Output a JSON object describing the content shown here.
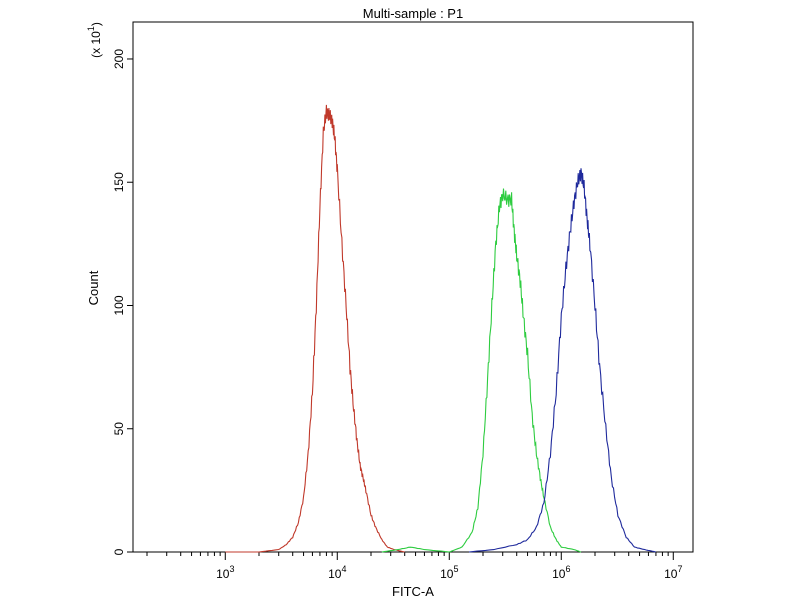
{
  "chart_data": {
    "type": "line",
    "title": "Multi-sample : P1",
    "xlabel": "FITC-A",
    "ylabel": "Count",
    "y_multiplier": "(x 10",
    "y_multiplier_exp": "1",
    "y_multiplier_close": ")",
    "x_scale": "log",
    "xlim": [
      150,
      15000000
    ],
    "ylim": [
      0,
      215
    ],
    "y_ticks": [
      {
        "value": 0,
        "label": "0"
      },
      {
        "value": 50,
        "label": "50"
      },
      {
        "value": 100,
        "label": "100"
      },
      {
        "value": 150,
        "label": "150"
      },
      {
        "value": 200,
        "label": "200"
      }
    ],
    "x_ticks": [
      {
        "value": 1000,
        "base": "10",
        "exp": "3"
      },
      {
        "value": 10000,
        "base": "10",
        "exp": "4"
      },
      {
        "value": 100000,
        "base": "10",
        "exp": "5"
      },
      {
        "value": 1000000,
        "base": "10",
        "exp": "6"
      },
      {
        "value": 10000000,
        "base": "10",
        "exp": "7"
      }
    ],
    "grid": false,
    "legend": "none",
    "series": [
      {
        "color": "#c0392b",
        "points": [
          [
            1000,
            0
          ],
          [
            2000,
            0
          ],
          [
            3000,
            1
          ],
          [
            3500,
            3
          ],
          [
            4000,
            6
          ],
          [
            4500,
            12
          ],
          [
            5000,
            22
          ],
          [
            5500,
            40
          ],
          [
            6000,
            65
          ],
          [
            6500,
            100
          ],
          [
            7000,
            140
          ],
          [
            7500,
            170
          ],
          [
            8000,
            179
          ],
          [
            8500,
            177
          ],
          [
            9000,
            175
          ],
          [
            9500,
            168
          ],
          [
            10000,
            155
          ],
          [
            11000,
            125
          ],
          [
            12000,
            100
          ],
          [
            13000,
            75
          ],
          [
            14000,
            58
          ],
          [
            15000,
            45
          ],
          [
            16000,
            35
          ],
          [
            17000,
            30
          ],
          [
            18000,
            25
          ],
          [
            20000,
            15
          ],
          [
            22000,
            10
          ],
          [
            25000,
            5
          ],
          [
            28000,
            2
          ],
          [
            32000,
            1
          ],
          [
            40000,
            0
          ]
        ]
      },
      {
        "color": "#2ecc40",
        "points": [
          [
            25000,
            0
          ],
          [
            35000,
            1
          ],
          [
            45000,
            2
          ],
          [
            60000,
            1
          ],
          [
            100000,
            0
          ],
          [
            130000,
            2
          ],
          [
            160000,
            8
          ],
          [
            180000,
            18
          ],
          [
            200000,
            40
          ],
          [
            220000,
            70
          ],
          [
            240000,
            100
          ],
          [
            260000,
            125
          ],
          [
            280000,
            140
          ],
          [
            300000,
            145
          ],
          [
            330000,
            143
          ],
          [
            360000,
            143
          ],
          [
            380000,
            130
          ],
          [
            400000,
            120
          ],
          [
            430000,
            110
          ],
          [
            460000,
            95
          ],
          [
            500000,
            80
          ],
          [
            550000,
            55
          ],
          [
            600000,
            40
          ],
          [
            650000,
            30
          ],
          [
            700000,
            22
          ],
          [
            800000,
            10
          ],
          [
            900000,
            5
          ],
          [
            1000000,
            2
          ],
          [
            1300000,
            1
          ],
          [
            1500000,
            0
          ]
        ]
      },
      {
        "color": "#1f2a9c",
        "points": [
          [
            150000,
            0
          ],
          [
            250000,
            1
          ],
          [
            400000,
            3
          ],
          [
            500000,
            5
          ],
          [
            600000,
            10
          ],
          [
            700000,
            20
          ],
          [
            800000,
            40
          ],
          [
            900000,
            65
          ],
          [
            1000000,
            95
          ],
          [
            1100000,
            115
          ],
          [
            1200000,
            130
          ],
          [
            1300000,
            142
          ],
          [
            1400000,
            150
          ],
          [
            1500000,
            154
          ],
          [
            1600000,
            148
          ],
          [
            1700000,
            135
          ],
          [
            1800000,
            125
          ],
          [
            2000000,
            100
          ],
          [
            2200000,
            75
          ],
          [
            2500000,
            50
          ],
          [
            2800000,
            30
          ],
          [
            3200000,
            15
          ],
          [
            3800000,
            6
          ],
          [
            4500000,
            2
          ],
          [
            5500000,
            1
          ],
          [
            7000000,
            0
          ]
        ]
      }
    ]
  }
}
